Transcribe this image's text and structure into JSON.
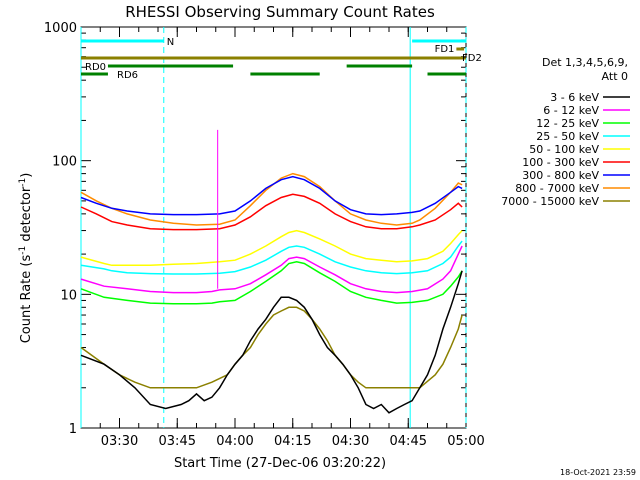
{
  "chart_data": {
    "type": "line",
    "title": "RHESSI Observing Summary Count Rates",
    "xlabel": "Start Time (27-Dec-06 03:20:22)",
    "ylabel_main": "Count Rate (s",
    "ylabel_sup1": "-1",
    "ylabel_mid": " detector",
    "ylabel_sup2": "-1",
    "ylabel_end": ")",
    "x_unit": "minutes after 03:20",
    "xlim": [
      0,
      100
    ],
    "ylim": [
      1,
      1000
    ],
    "yscale": "log",
    "x_ticks": [
      {
        "v": 10,
        "label": "03:30"
      },
      {
        "v": 25,
        "label": "03:45"
      },
      {
        "v": 40,
        "label": "04:00"
      },
      {
        "v": 55,
        "label": "04:15"
      },
      {
        "v": 70,
        "label": "04:30"
      },
      {
        "v": 85,
        "label": "04:45"
      },
      {
        "v": 100,
        "label": "05:00"
      }
    ],
    "y_ticks": [
      {
        "v": 1,
        "label": "1"
      },
      {
        "v": 10,
        "label": "10"
      },
      {
        "v": 100,
        "label": "100"
      },
      {
        "v": 1000,
        "label": "1000"
      }
    ],
    "legend_title_1": "Det 1,3,4,5,6,9,",
    "legend_title_2": "Att 0",
    "legend_position": "right",
    "series": [
      {
        "name": "3 - 6 keV",
        "color": "#000000",
        "x": [
          0,
          6,
          10,
          14,
          18,
          22,
          26,
          28,
          30,
          32,
          34,
          36,
          38,
          40,
          42,
          44,
          46,
          48,
          50,
          52,
          54,
          56,
          58,
          60,
          62,
          64,
          66,
          68,
          70,
          72,
          74,
          76,
          78,
          80,
          82,
          84,
          86,
          88,
          90,
          92,
          94,
          96,
          98,
          99
        ],
        "y": [
          3.5,
          3.0,
          2.5,
          2.0,
          1.5,
          1.4,
          1.5,
          1.6,
          1.8,
          1.6,
          1.7,
          2.0,
          2.5,
          3.0,
          3.5,
          4.5,
          5.5,
          6.5,
          8.0,
          9.5,
          9.5,
          9.0,
          8.0,
          6.5,
          5.0,
          4.0,
          3.5,
          3.0,
          2.5,
          2.0,
          1.5,
          1.4,
          1.5,
          1.3,
          1.4,
          1.5,
          1.6,
          2.0,
          2.5,
          3.5,
          5.5,
          8.0,
          12.0,
          15.0
        ]
      },
      {
        "name": "6 - 12 keV",
        "color": "#ff00ff",
        "x": [
          0,
          6,
          12,
          18,
          24,
          30,
          34,
          36,
          40,
          44,
          48,
          52,
          54,
          56,
          58,
          62,
          66,
          70,
          74,
          78,
          82,
          86,
          90,
          94,
          96,
          98,
          99
        ],
        "y": [
          13.0,
          11.5,
          11.0,
          10.5,
          10.3,
          10.3,
          10.5,
          10.8,
          11.0,
          12.0,
          14.0,
          16.5,
          18.5,
          19.0,
          18.5,
          16.0,
          14.0,
          12.0,
          11.0,
          10.5,
          10.3,
          10.5,
          11.0,
          13.0,
          15.0,
          20.0,
          23.0
        ]
      },
      {
        "name": "12 - 25 keV",
        "color": "#00ff00",
        "x": [
          0,
          6,
          12,
          18,
          24,
          30,
          34,
          36,
          40,
          44,
          48,
          52,
          54,
          56,
          58,
          62,
          66,
          70,
          74,
          78,
          82,
          86,
          90,
          94,
          96,
          98,
          99
        ],
        "y": [
          11.0,
          9.5,
          9.0,
          8.6,
          8.5,
          8.5,
          8.6,
          8.8,
          9.0,
          10.5,
          12.5,
          15.0,
          17.0,
          17.5,
          17.0,
          14.5,
          12.5,
          10.5,
          9.5,
          9.0,
          8.6,
          8.7,
          9.0,
          10.0,
          11.5,
          13.5,
          15.0
        ]
      },
      {
        "name": "25 - 50 keV",
        "color": "#00ffff",
        "x": [
          0,
          6,
          8,
          12,
          18,
          24,
          30,
          36,
          40,
          44,
          48,
          52,
          54,
          56,
          58,
          62,
          66,
          70,
          74,
          78,
          82,
          86,
          90,
          94,
          96,
          98,
          99
        ],
        "y": [
          16.5,
          15.5,
          15.0,
          14.5,
          14.3,
          14.2,
          14.2,
          14.4,
          14.8,
          16.0,
          18.0,
          21.0,
          22.5,
          23.0,
          22.5,
          20.0,
          17.5,
          16.0,
          15.0,
          14.5,
          14.3,
          14.5,
          15.0,
          17.0,
          19.0,
          23.0,
          25.0
        ]
      },
      {
        "name": "50 - 100 keV",
        "color": "#ffff00",
        "x": [
          0,
          6,
          8,
          12,
          18,
          24,
          30,
          36,
          40,
          44,
          48,
          52,
          54,
          56,
          58,
          62,
          66,
          70,
          74,
          78,
          82,
          86,
          90,
          94,
          96,
          98,
          99
        ],
        "y": [
          19.0,
          17.0,
          16.5,
          16.5,
          16.5,
          16.8,
          17.0,
          17.5,
          18.0,
          20.0,
          23.0,
          27.0,
          29.0,
          30.0,
          29.0,
          26.0,
          23.0,
          20.0,
          18.5,
          18.0,
          17.5,
          17.8,
          18.5,
          21.0,
          24.0,
          28.0,
          30.0
        ]
      },
      {
        "name": "100 - 300 keV",
        "color": "#ff0000",
        "x": [
          0,
          4,
          8,
          12,
          18,
          24,
          30,
          36,
          40,
          44,
          48,
          52,
          55,
          58,
          62,
          66,
          70,
          74,
          78,
          82,
          86,
          88,
          92,
          96,
          98,
          99
        ],
        "y": [
          45.0,
          40.0,
          35.0,
          33.0,
          31.0,
          30.5,
          30.5,
          31.0,
          33.0,
          38.0,
          46.0,
          53.0,
          56.0,
          54.0,
          48.0,
          40.0,
          35.0,
          32.0,
          31.0,
          31.0,
          32.0,
          33.0,
          36.0,
          43.0,
          48.0,
          45.0
        ]
      },
      {
        "name": "300 - 800 keV",
        "color": "#0000ff",
        "x": [
          0,
          4,
          8,
          12,
          18,
          24,
          30,
          36,
          40,
          44,
          48,
          52,
          55,
          58,
          62,
          66,
          70,
          74,
          78,
          82,
          86,
          88,
          92,
          96,
          98,
          99
        ],
        "y": [
          53.0,
          48.0,
          44.0,
          42.0,
          40.0,
          39.5,
          39.5,
          40.0,
          42.0,
          50.0,
          62.0,
          72.0,
          76.0,
          72.0,
          62.0,
          50.0,
          43.0,
          40.0,
          39.5,
          40.0,
          41.0,
          42.0,
          48.0,
          58.0,
          64.0,
          62.0
        ]
      },
      {
        "name": "800 - 7000 keV",
        "color": "#ff8c00",
        "x": [
          0,
          4,
          8,
          12,
          18,
          24,
          30,
          36,
          40,
          44,
          48,
          52,
          55,
          58,
          62,
          66,
          70,
          74,
          78,
          82,
          86,
          88,
          92,
          96,
          98,
          99
        ],
        "y": [
          58.0,
          50.0,
          44.0,
          40.0,
          36.0,
          34.0,
          33.0,
          33.5,
          36.0,
          46.0,
          60.0,
          74.0,
          80.0,
          76.0,
          64.0,
          50.0,
          40.0,
          36.0,
          34.0,
          33.0,
          34.0,
          36.0,
          44.0,
          58.0,
          68.0,
          66.0
        ]
      },
      {
        "name": "7000 - 15000 keV",
        "color": "#8b8000",
        "x": [
          0,
          6,
          10,
          14,
          18,
          22,
          26,
          30,
          34,
          38,
          40,
          42,
          44,
          46,
          48,
          50,
          52,
          54,
          56,
          58,
          60,
          62,
          64,
          66,
          68,
          70,
          72,
          74,
          76,
          80,
          84,
          88,
          92,
          94,
          96,
          98,
          99
        ],
        "y": [
          4.0,
          3.0,
          2.5,
          2.2,
          2.0,
          2.0,
          2.0,
          2.0,
          2.2,
          2.5,
          3.0,
          3.5,
          4.0,
          5.0,
          6.0,
          7.0,
          7.5,
          8.0,
          8.0,
          7.5,
          6.5,
          5.5,
          4.5,
          3.5,
          3.0,
          2.5,
          2.2,
          2.0,
          2.0,
          2.0,
          2.0,
          2.0,
          2.5,
          3.0,
          4.0,
          5.5,
          7.0
        ]
      }
    ],
    "flags": [
      {
        "label": "N",
        "color": "#00ffff",
        "segments": [
          [
            0,
            21.5
          ],
          [
            86,
            100
          ]
        ],
        "level": 1
      },
      {
        "label": "FD1",
        "color": "#8b8000",
        "segments": [
          [
            97.5,
            99.5
          ]
        ],
        "level": 2
      },
      {
        "label": "FD2",
        "color": "#8b8000",
        "segments": [
          [
            0,
            100
          ]
        ],
        "level": 3
      },
      {
        "label": "RD0",
        "color": "#008000",
        "segments": [
          [
            7,
            39.5
          ],
          [
            69,
            86
          ]
        ],
        "level": 4
      },
      {
        "label": "RD6",
        "color": "#008000",
        "segments": [
          [
            0,
            7
          ],
          [
            44,
            62
          ],
          [
            90,
            100
          ]
        ],
        "level": 5
      }
    ],
    "vlines_solid": [
      0,
      85.5
    ],
    "vlines_dashed": [
      21.5,
      100
    ],
    "annotations": {
      "spike_x": 35.5,
      "spike_y": 170
    }
  },
  "footer_timestamp": "18-Oct-2021 23:59"
}
